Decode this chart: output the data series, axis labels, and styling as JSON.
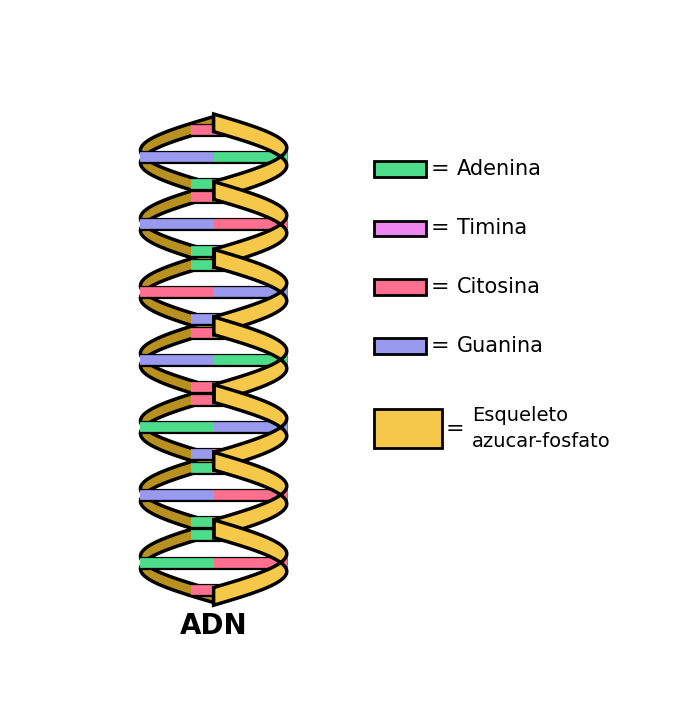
{
  "title": "ADN",
  "background_color": "#ffffff",
  "legend_items": [
    {
      "label": "Adenina",
      "color": "#4ddd8a",
      "border": "#000000"
    },
    {
      "label": "Timina",
      "color": "#ee88ee",
      "border": "#000000"
    },
    {
      "label": "Citosina",
      "color": "#ff7090",
      "border": "#000000"
    },
    {
      "label": "Guanina",
      "color": "#9999ee",
      "border": "#000000"
    },
    {
      "label": "Esqueleto\nazucar-fosfato",
      "color": "#f5c84a",
      "border": "#000000"
    }
  ],
  "helix_color_light": "#f5c84a",
  "helix_color_dark": "#b89020",
  "color_map": {
    "green": "#4ddd8a",
    "pink": "#ff7090",
    "purple": "#9999ee"
  },
  "pair_pattern": [
    [
      "purple",
      "pink"
    ],
    [
      "green",
      "purple"
    ],
    [
      "purple",
      "green"
    ],
    [
      "pink",
      "green"
    ],
    [
      "purple",
      "pink"
    ],
    [
      "green",
      "purple"
    ],
    [
      "pink",
      "green"
    ],
    [
      "purple",
      "pink"
    ],
    [
      "green",
      "purple"
    ],
    [
      "pink",
      "green"
    ],
    [
      "purple",
      "green"
    ],
    [
      "pink",
      "purple"
    ],
    [
      "green",
      "pink"
    ],
    [
      "purple",
      "green"
    ],
    [
      "pink",
      "purple"
    ],
    [
      "green",
      "pink"
    ]
  ]
}
